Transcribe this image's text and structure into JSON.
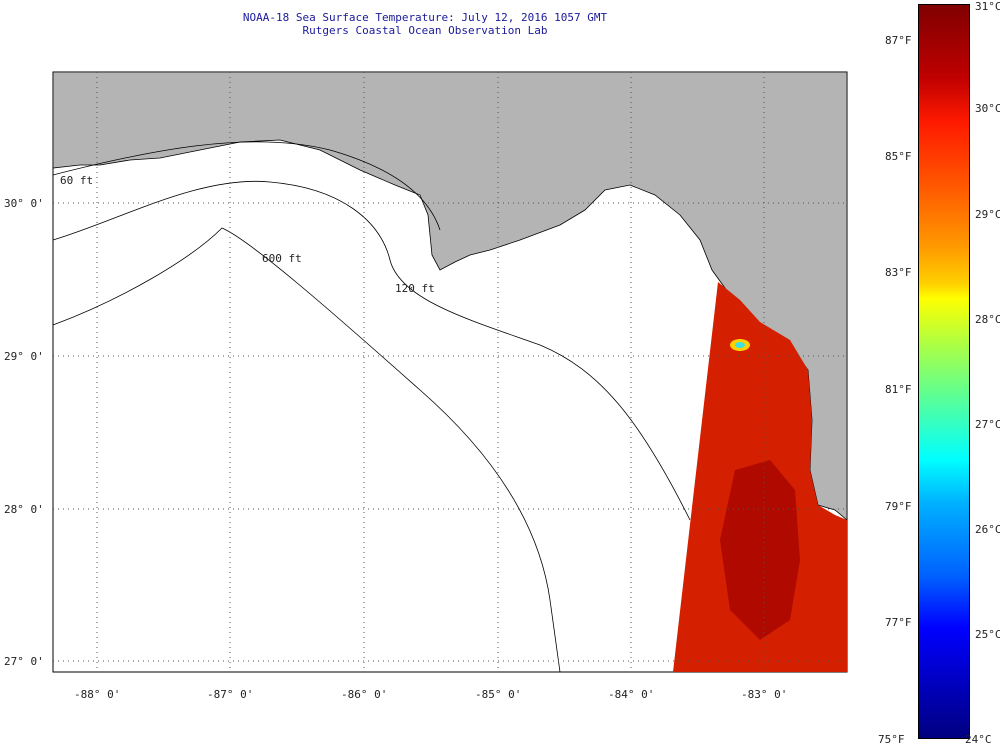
{
  "title": {
    "line1": "NOAA-18 Sea Surface Temperature:  July 12, 2016 1057 GMT",
    "line2": "Rutgers Coastal Ocean Observation Lab"
  },
  "map": {
    "lat_labels": [
      "30° 0'",
      "29° 0'",
      "28° 0'",
      "27° 0'"
    ],
    "lon_labels": [
      "-88° 0'",
      "-87° 0'",
      "-86° 0'",
      "-85° 0'",
      "-84° 0'",
      "-83° 0'"
    ],
    "isobath_labels": [
      "60 ft",
      "120 ft",
      "600 ft"
    ],
    "colors": {
      "land": "#b4b4b4",
      "ocean": "#ffffff",
      "sst_warm": "#d42000",
      "sst_hot": "#a00000"
    }
  },
  "colorbar": {
    "celsius_labels": [
      "31°C",
      "30°C",
      "29°C",
      "28°C",
      "27°C",
      "26°C",
      "25°C",
      "24°C"
    ],
    "fahrenheit_labels": [
      "87°F",
      "85°F",
      "83°F",
      "81°F",
      "79°F",
      "77°F",
      "75°F"
    ],
    "range_c": [
      24,
      31
    ]
  }
}
